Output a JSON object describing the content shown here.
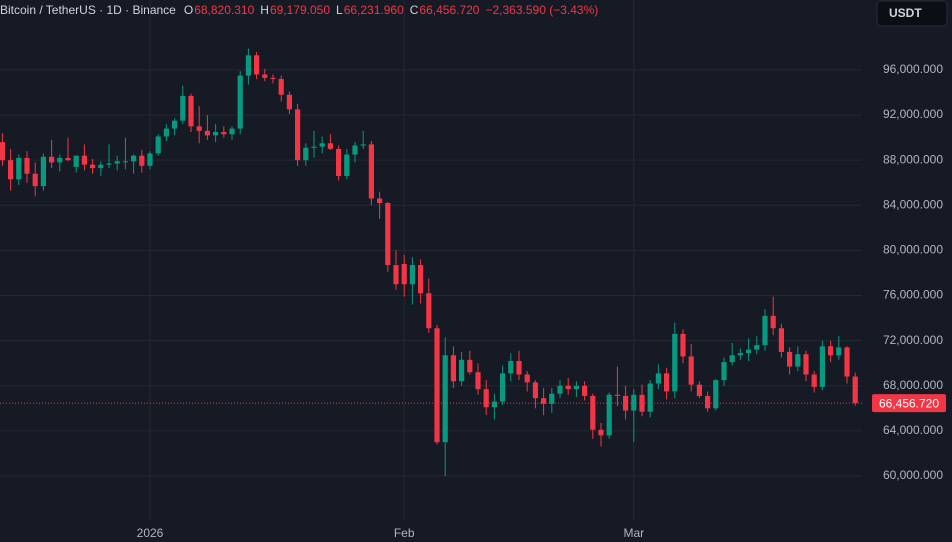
{
  "header": {
    "symbol": "Bitcoin / TetherUS · 1D · Binance",
    "open_key": "O",
    "open": "68,820.310",
    "high_key": "H",
    "high": "69,179.050",
    "low_key": "L",
    "low": "66,231.960",
    "close_key": "C",
    "close": "66,456.720",
    "change": "−2,363.590 (−3.43%)",
    "currency_button": "USDT"
  },
  "chart_data": {
    "type": "candlestick",
    "up_color": "#089981",
    "down_color": "#f23645",
    "grid": true,
    "ylim": [
      56100,
      102200
    ],
    "yticks": [
      {
        "value": 60000,
        "label": "60,000.000"
      },
      {
        "value": 64000,
        "label": "64,000.000"
      },
      {
        "value": 68000,
        "label": "68,000.000"
      },
      {
        "value": 72000,
        "label": "72,000.000"
      },
      {
        "value": 76000,
        "label": "76,000.000"
      },
      {
        "value": 80000,
        "label": "80,000.000"
      },
      {
        "value": 84000,
        "label": "84,000.000"
      },
      {
        "value": 88000,
        "label": "88,000.000"
      },
      {
        "value": 92000,
        "label": "92,000.000"
      },
      {
        "value": 96000,
        "label": "96,000.000"
      }
    ],
    "last_price": {
      "value": 66456.72,
      "label": "66,456.720"
    },
    "categories": [
      null,
      null,
      null,
      null,
      null,
      null,
      null,
      null,
      null,
      null,
      null,
      null,
      null,
      null,
      null,
      null,
      null,
      null,
      "2026",
      null,
      null,
      null,
      null,
      null,
      null,
      null,
      null,
      null,
      null,
      null,
      null,
      null,
      null,
      null,
      null,
      null,
      null,
      null,
      null,
      null,
      null,
      null,
      null,
      null,
      null,
      null,
      null,
      null,
      null,
      "Feb",
      null,
      null,
      null,
      null,
      null,
      null,
      null,
      null,
      null,
      null,
      null,
      null,
      null,
      null,
      null,
      null,
      null,
      null,
      null,
      null,
      null,
      null,
      null,
      null,
      null,
      null,
      null,
      "Mar",
      null,
      null,
      null,
      null,
      null,
      null,
      null,
      null,
      null,
      null,
      null,
      null,
      null,
      null,
      null,
      null,
      null,
      null,
      null,
      null,
      null,
      null,
      null,
      null,
      null,
      null,
      null
    ],
    "open": [
      89600,
      88000,
      86300,
      88200,
      86800,
      85700,
      88300,
      87800,
      88200,
      87400,
      88400,
      87600,
      87300,
      87600,
      87700,
      87900,
      87900,
      88400,
      87500,
      88600,
      90100,
      90800,
      91500,
      93700,
      91000,
      90600,
      90200,
      90500,
      90300,
      90800,
      95500,
      97300,
      95600,
      95300,
      95200,
      93800,
      92500,
      88000,
      89100,
      89200,
      89500,
      89000,
      86600,
      88500,
      89300,
      89400,
      84600,
      84200,
      78700,
      78800,
      77000,
      78700,
      76200,
      73100,
      63000,
      70700,
      68400,
      70300,
      69200,
      67700,
      66100,
      66600,
      69100,
      70200,
      69000,
      68300,
      66900,
      66400,
      67300,
      68000,
      67700,
      68000,
      67100,
      64100,
      63600,
      67200,
      67100,
      65800,
      67200,
      65700,
      68200,
      69100,
      67500,
      72600,
      70600,
      68100,
      67100,
      66000,
      68500,
      70100,
      70700,
      70900,
      71200,
      71600,
      74200,
      73100,
      71000,
      69700,
      70800,
      69000,
      67900,
      71500,
      70700,
      71400,
      68820.31
    ],
    "high": [
      90400,
      89000,
      88500,
      88800,
      87800,
      88600,
      89800,
      88500,
      90000,
      88400,
      89400,
      88100,
      87900,
      89400,
      88400,
      90000,
      88500,
      88900,
      88800,
      90300,
      91200,
      91700,
      94600,
      93900,
      92800,
      92000,
      91200,
      91000,
      91000,
      95900,
      97900,
      97600,
      96100,
      95600,
      95500,
      94100,
      93000,
      89500,
      90600,
      90100,
      90300,
      89300,
      89000,
      89600,
      90600,
      89700,
      85200,
      84300,
      80000,
      79600,
      79400,
      79200,
      77500,
      73400,
      72300,
      71500,
      71000,
      71100,
      70000,
      68500,
      67300,
      69800,
      70900,
      71100,
      69300,
      68500,
      67800,
      67800,
      68500,
      68700,
      68400,
      68400,
      67300,
      64700,
      67400,
      69700,
      68000,
      67700,
      68100,
      68500,
      69900,
      69600,
      73600,
      73000,
      71700,
      68400,
      67500,
      68600,
      70500,
      71800,
      71300,
      72200,
      72400,
      74800,
      75900,
      73500,
      71400,
      71500,
      71100,
      69300,
      72000,
      72000,
      72400,
      71500,
      69179.05
    ],
    "low": [
      87500,
      85300,
      85800,
      86000,
      84800,
      85300,
      87300,
      87000,
      87900,
      86900,
      87100,
      86800,
      86600,
      87300,
      87100,
      87200,
      86800,
      86900,
      87200,
      88400,
      89700,
      90200,
      91200,
      90500,
      89500,
      89800,
      89600,
      90000,
      89800,
      90300,
      94700,
      95200,
      95000,
      94800,
      93200,
      92100,
      87500,
      87500,
      88200,
      88600,
      88900,
      86200,
      86300,
      87800,
      89000,
      84000,
      82800,
      78100,
      76500,
      75900,
      75200,
      75300,
      72700,
      62800,
      60000,
      67800,
      68000,
      69000,
      67200,
      65400,
      65000,
      66300,
      68400,
      68500,
      67500,
      66000,
      65400,
      65600,
      66900,
      67200,
      67000,
      66700,
      63300,
      62600,
      63300,
      66200,
      65000,
      63000,
      65300,
      65200,
      67700,
      66800,
      66900,
      70000,
      67500,
      66900,
      65700,
      65800,
      68000,
      69800,
      70300,
      70200,
      70800,
      71100,
      72500,
      70500,
      69000,
      69300,
      68400,
      67400,
      67600,
      70100,
      70300,
      68200,
      66231.96
    ],
    "close": [
      88000,
      86300,
      88200,
      86800,
      85700,
      88300,
      87800,
      88200,
      88000,
      88400,
      87600,
      87300,
      87600,
      87700,
      87900,
      87900,
      88400,
      87500,
      88600,
      90100,
      90800,
      91500,
      93700,
      91000,
      90600,
      90200,
      90500,
      90300,
      90800,
      95500,
      97300,
      95600,
      95300,
      95200,
      93800,
      92500,
      88000,
      89100,
      89200,
      89500,
      89000,
      86600,
      88500,
      89300,
      89400,
      84600,
      84200,
      78700,
      77000,
      77000,
      78700,
      76200,
      73100,
      63000,
      70700,
      68400,
      70300,
      69200,
      67700,
      66100,
      66600,
      69100,
      70200,
      69000,
      68300,
      66900,
      66400,
      67300,
      68000,
      67700,
      68000,
      67100,
      64100,
      63600,
      67200,
      67100,
      65800,
      67200,
      65700,
      68200,
      69100,
      67500,
      72600,
      70600,
      68100,
      67100,
      66000,
      68500,
      70100,
      70700,
      70900,
      71200,
      71600,
      74200,
      73100,
      71000,
      69700,
      70800,
      69000,
      67900,
      71500,
      70700,
      71400,
      68820.31,
      66456.72
    ]
  }
}
